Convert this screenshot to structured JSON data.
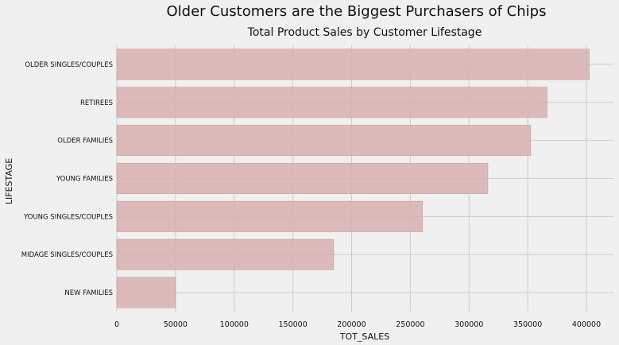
{
  "suptitle": "Older Customers are the Biggest Purchasers of Chips",
  "chart_data": {
    "type": "bar",
    "orientation": "horizontal",
    "title": "Total Product Sales by Customer Lifestage",
    "xlabel": "TOT_SALES",
    "ylabel": "LIFESTAGE",
    "categories": [
      "OLDER SINGLES/COUPLES",
      "RETIREES",
      "OLDER FAMILIES",
      "YOUNG FAMILIES",
      "YOUNG SINGLES/COUPLES",
      "MIDAGE SINGLES/COUPLES",
      "NEW FAMILIES"
    ],
    "values": [
      402400,
      366500,
      352500,
      316000,
      260400,
      184700,
      50000
    ],
    "xlim": [
      0,
      423000
    ],
    "xticks": [
      0,
      50000,
      100000,
      150000,
      200000,
      250000,
      300000,
      350000,
      400000
    ],
    "grid": true,
    "bar_color": "#d8b2b0",
    "bar_edge_color": "#c99b99",
    "grid_color": "#cbcbcb",
    "background_color": "#f0f0f0"
  }
}
